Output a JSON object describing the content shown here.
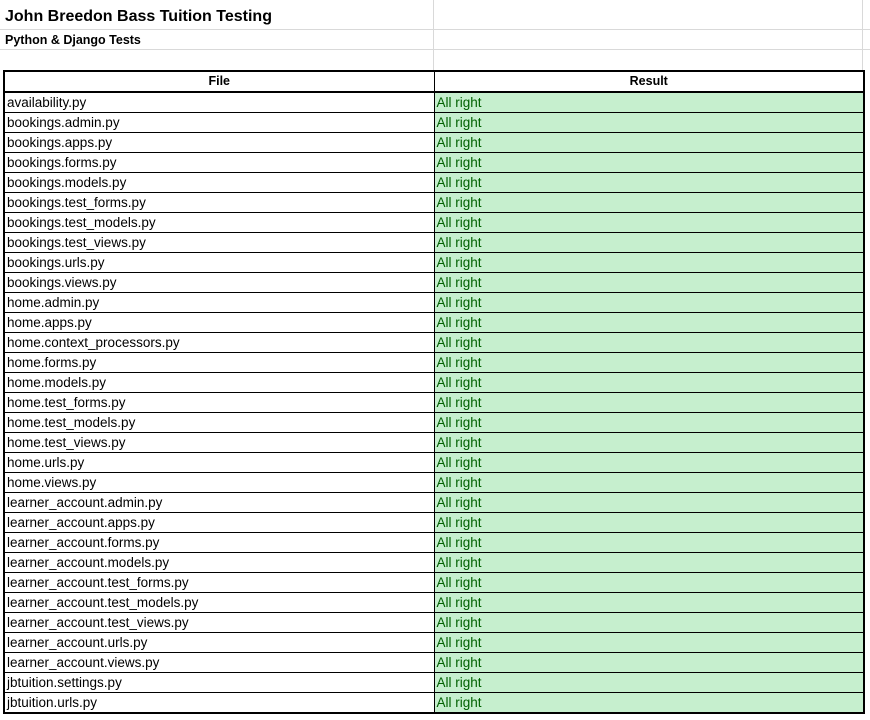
{
  "sheet": {
    "title": "John Breedon Bass Tuition Testing",
    "subtitle": "Python & Django Tests"
  },
  "table": {
    "headers": {
      "file": "File",
      "result": "Result"
    },
    "rows": [
      {
        "file": "availability.py",
        "result": "All right"
      },
      {
        "file": "bookings.admin.py",
        "result": "All right"
      },
      {
        "file": "bookings.apps.py",
        "result": "All right"
      },
      {
        "file": "bookings.forms.py",
        "result": "All right"
      },
      {
        "file": "bookings.models.py",
        "result": "All right"
      },
      {
        "file": "bookings.test_forms.py",
        "result": "All right"
      },
      {
        "file": "bookings.test_models.py",
        "result": "All right"
      },
      {
        "file": "bookings.test_views.py",
        "result": "All right"
      },
      {
        "file": "bookings.urls.py",
        "result": "All right"
      },
      {
        "file": "bookings.views.py",
        "result": "All right"
      },
      {
        "file": "home.admin.py",
        "result": "All right"
      },
      {
        "file": "home.apps.py",
        "result": "All right"
      },
      {
        "file": "home.context_processors.py",
        "result": "All right"
      },
      {
        "file": "home.forms.py",
        "result": "All right"
      },
      {
        "file": "home.models.py",
        "result": "All right"
      },
      {
        "file": "home.test_forms.py",
        "result": "All right"
      },
      {
        "file": "home.test_models.py",
        "result": "All right"
      },
      {
        "file": "home.test_views.py",
        "result": "All right"
      },
      {
        "file": "home.urls.py",
        "result": "All right"
      },
      {
        "file": "home.views.py",
        "result": "All right"
      },
      {
        "file": "learner_account.admin.py",
        "result": "All right"
      },
      {
        "file": "learner_account.apps.py",
        "result": "All right"
      },
      {
        "file": "learner_account.forms.py",
        "result": "All right"
      },
      {
        "file": "learner_account.models.py",
        "result": "All right"
      },
      {
        "file": "learner_account.test_forms.py",
        "result": "All right"
      },
      {
        "file": "learner_account.test_models.py",
        "result": "All right"
      },
      {
        "file": "learner_account.test_views.py",
        "result": "All right"
      },
      {
        "file": "learner_account.urls.py",
        "result": "All right"
      },
      {
        "file": "learner_account.views.py",
        "result": "All right"
      },
      {
        "file": "jbtuition.settings.py",
        "result": "All right"
      },
      {
        "file": "jbtuition.urls.py",
        "result": "All right"
      }
    ]
  },
  "colors": {
    "pass_fill": "#c6efce",
    "pass_text": "#006100",
    "gridline": "#d9d9d9",
    "border": "#000000"
  }
}
